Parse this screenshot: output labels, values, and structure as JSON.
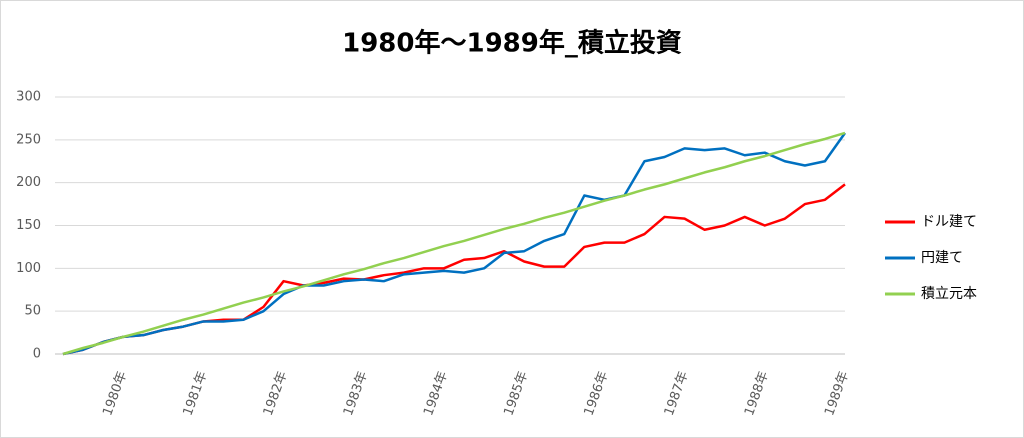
{
  "chart_data": {
    "type": "line",
    "title": "1980年～1989年_積立投資",
    "categories": [
      null,
      null,
      null,
      "1980年",
      null,
      null,
      null,
      "1981年",
      null,
      null,
      null,
      "1982年",
      null,
      null,
      null,
      "1983年",
      null,
      null,
      null,
      "1984年",
      null,
      null,
      null,
      "1985年",
      null,
      null,
      null,
      "1986年",
      null,
      null,
      null,
      "1987年",
      null,
      null,
      null,
      "1988年",
      null,
      null,
      null,
      "1989年"
    ],
    "series": [
      {
        "name": "ドル建て",
        "color": "#ff0000",
        "values": [
          0,
          5,
          14,
          20,
          22,
          28,
          32,
          38,
          40,
          40,
          55,
          85,
          80,
          83,
          88,
          87,
          92,
          95,
          100,
          100,
          110,
          112,
          120,
          108,
          102,
          102,
          125,
          130,
          130,
          140,
          160,
          158,
          145,
          150,
          160,
          150,
          158,
          175,
          180,
          198
        ]
      },
      {
        "name": "円建て",
        "color": "#0070c0",
        "values": [
          0,
          5,
          14,
          20,
          22,
          28,
          32,
          38,
          38,
          40,
          50,
          70,
          80,
          80,
          85,
          87,
          85,
          93,
          95,
          97,
          95,
          100,
          118,
          120,
          132,
          140,
          185,
          180,
          185,
          225,
          230,
          240,
          238,
          240,
          232,
          235,
          225,
          220,
          225,
          258
        ]
      },
      {
        "name": "積立元本",
        "color": "#92d050",
        "values": [
          0,
          7,
          13,
          20,
          26,
          33,
          40,
          46,
          53,
          60,
          66,
          73,
          79,
          86,
          93,
          99,
          106,
          112,
          119,
          126,
          132,
          139,
          146,
          152,
          159,
          165,
          172,
          179,
          185,
          192,
          198,
          205,
          212,
          218,
          225,
          231,
          238,
          245,
          251,
          258
        ]
      }
    ],
    "ylim": [
      0,
      300
    ],
    "yticks": [
      0,
      50,
      100,
      150,
      200,
      250,
      300
    ],
    "grid": true,
    "legend": "right"
  }
}
